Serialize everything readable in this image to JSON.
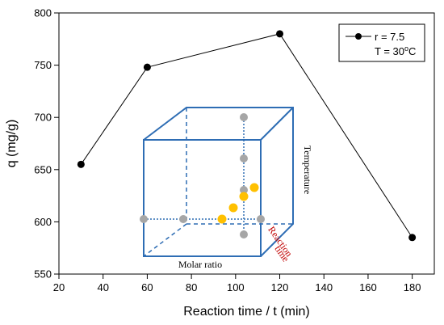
{
  "chart_data": {
    "type": "line",
    "title": "",
    "xlabel": "Reaction time / t (min)",
    "ylabel": "q (mg/g)",
    "xlim": [
      20,
      190
    ],
    "ylim": [
      550,
      800
    ],
    "xticks": [
      20,
      40,
      60,
      80,
      100,
      120,
      140,
      160,
      180
    ],
    "yticks": [
      550,
      600,
      650,
      700,
      750,
      800
    ],
    "grid": false,
    "legend_position": "top-right",
    "series": [
      {
        "legend_line1": "r = 7.5",
        "legend_line2_prefix": "T = 30",
        "legend_line2_sup": "o",
        "legend_line2_suffix": "C",
        "color": "#000000",
        "x": [
          30,
          60,
          120,
          180
        ],
        "y": [
          655,
          748,
          780,
          585
        ]
      }
    ],
    "inset": {
      "type": "cube-diagram",
      "labels": {
        "front": "Molar ratio",
        "side": "Temperature",
        "depth_line1": "Reaction",
        "depth_line2": "time"
      },
      "colors": {
        "edge": "#2e6db4",
        "grey_point": "#a6a6a6",
        "orange_point": "#ffc000",
        "depth_label": "#c00000"
      }
    }
  }
}
